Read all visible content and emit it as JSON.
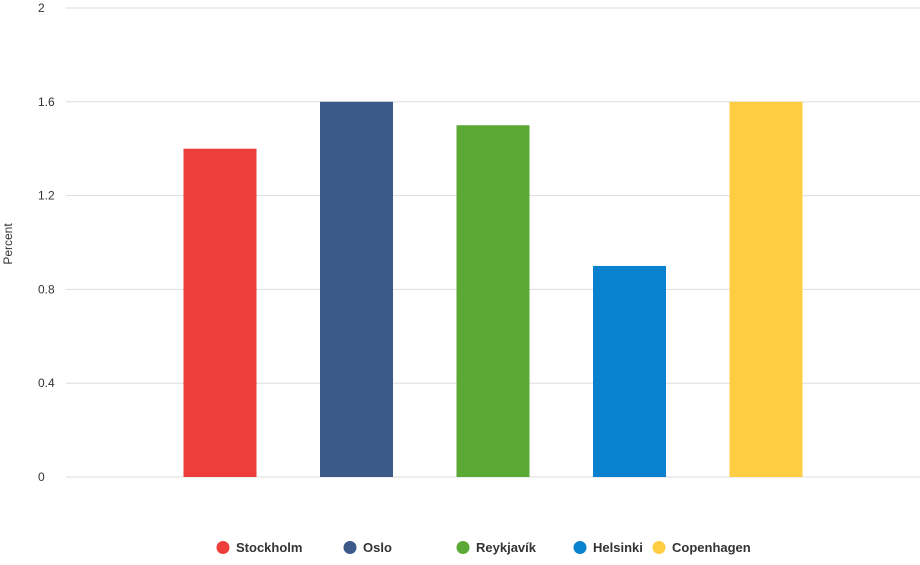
{
  "chart_data": {
    "type": "bar",
    "title": "",
    "xlabel": "",
    "ylabel": "Percent",
    "ylim": [
      0,
      2
    ],
    "yticks": [
      "0",
      "0.4",
      "0.8",
      "1.2",
      "1.6",
      "2"
    ],
    "tick_values": [
      0,
      0.4,
      0.8,
      1.2,
      1.6,
      2
    ],
    "grid": true,
    "legend_position": "bottom",
    "categories": [
      "Stockholm",
      "Oslo",
      "Reykjavík",
      "Helsinki",
      "Copenhagen"
    ],
    "values": [
      1.4,
      1.6,
      1.5,
      0.9,
      1.6
    ],
    "colors": [
      "#ee3e3c",
      "#3b5a8a",
      "#59a934",
      "#0a81cf",
      "#fecd42"
    ]
  }
}
